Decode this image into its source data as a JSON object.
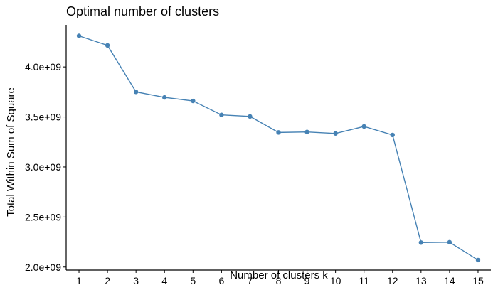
{
  "chart_data": {
    "type": "line",
    "title": "Optimal number of clusters",
    "xlabel": "Number of clusters k",
    "ylabel": "Total Within Sum of Square",
    "x": [
      1,
      2,
      3,
      4,
      5,
      6,
      7,
      8,
      9,
      10,
      11,
      12,
      13,
      14,
      15
    ],
    "x_tick_labels": [
      "1",
      "2",
      "3",
      "4",
      "5",
      "6",
      "7",
      "8",
      "9",
      "10",
      "11",
      "12",
      "13",
      "14",
      "15"
    ],
    "values": [
      4310000000.0,
      4215000000.0,
      3750000000.0,
      3695000000.0,
      3660000000.0,
      3520000000.0,
      3505000000.0,
      3345000000.0,
      3350000000.0,
      3335000000.0,
      3405000000.0,
      3320000000.0,
      2245000000.0,
      2248000000.0,
      2070000000.0
    ],
    "y_ticks": [
      2000000000.0,
      2500000000.0,
      3000000000.0,
      3500000000.0,
      4000000000.0
    ],
    "y_tick_labels": [
      "2.0e+09",
      "2.5e+09",
      "3.0e+09",
      "3.5e+09",
      "4.0e+09"
    ],
    "xlim": [
      0.55,
      15.45
    ],
    "ylim": [
      1970000000.0,
      4420000000.0
    ],
    "grid": false,
    "legend": "none",
    "line_color": "#4682B4"
  }
}
